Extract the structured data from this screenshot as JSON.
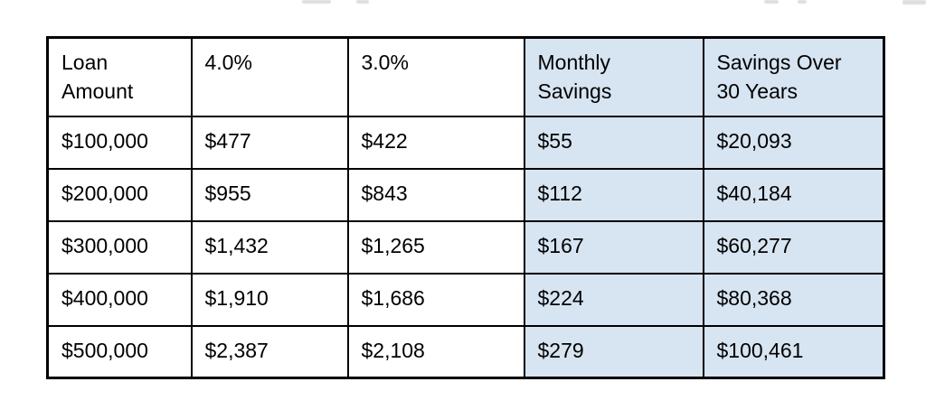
{
  "colors": {
    "highlight_fill": "#d7e4f1",
    "border": "#000000",
    "text": "#000000",
    "background": "#ffffff"
  },
  "table": {
    "headers": [
      {
        "id": "loan-amount",
        "label": "Loan\nAmount",
        "highlight": false
      },
      {
        "id": "rate-4-percent",
        "label": "4.0%",
        "highlight": false
      },
      {
        "id": "rate-3-percent",
        "label": "3.0%",
        "highlight": false
      },
      {
        "id": "monthly-savings",
        "label": "Monthly\nSavings",
        "highlight": true
      },
      {
        "id": "savings-30yr",
        "label": "Savings Over\n30 Years",
        "highlight": true
      }
    ],
    "rows": [
      [
        "$100,000",
        "$477",
        "$422",
        "$55",
        "$20,093"
      ],
      [
        "$200,000",
        "$955",
        "$843",
        "$112",
        "$40,184"
      ],
      [
        "$300,000",
        "$1,432",
        "$1,265",
        "$167",
        "$60,277"
      ],
      [
        "$400,000",
        "$1,910",
        "$1,686",
        "$224",
        "$80,368"
      ],
      [
        "$500,000",
        "$2,387",
        "$2,108",
        "$279",
        "$100,461"
      ]
    ]
  }
}
